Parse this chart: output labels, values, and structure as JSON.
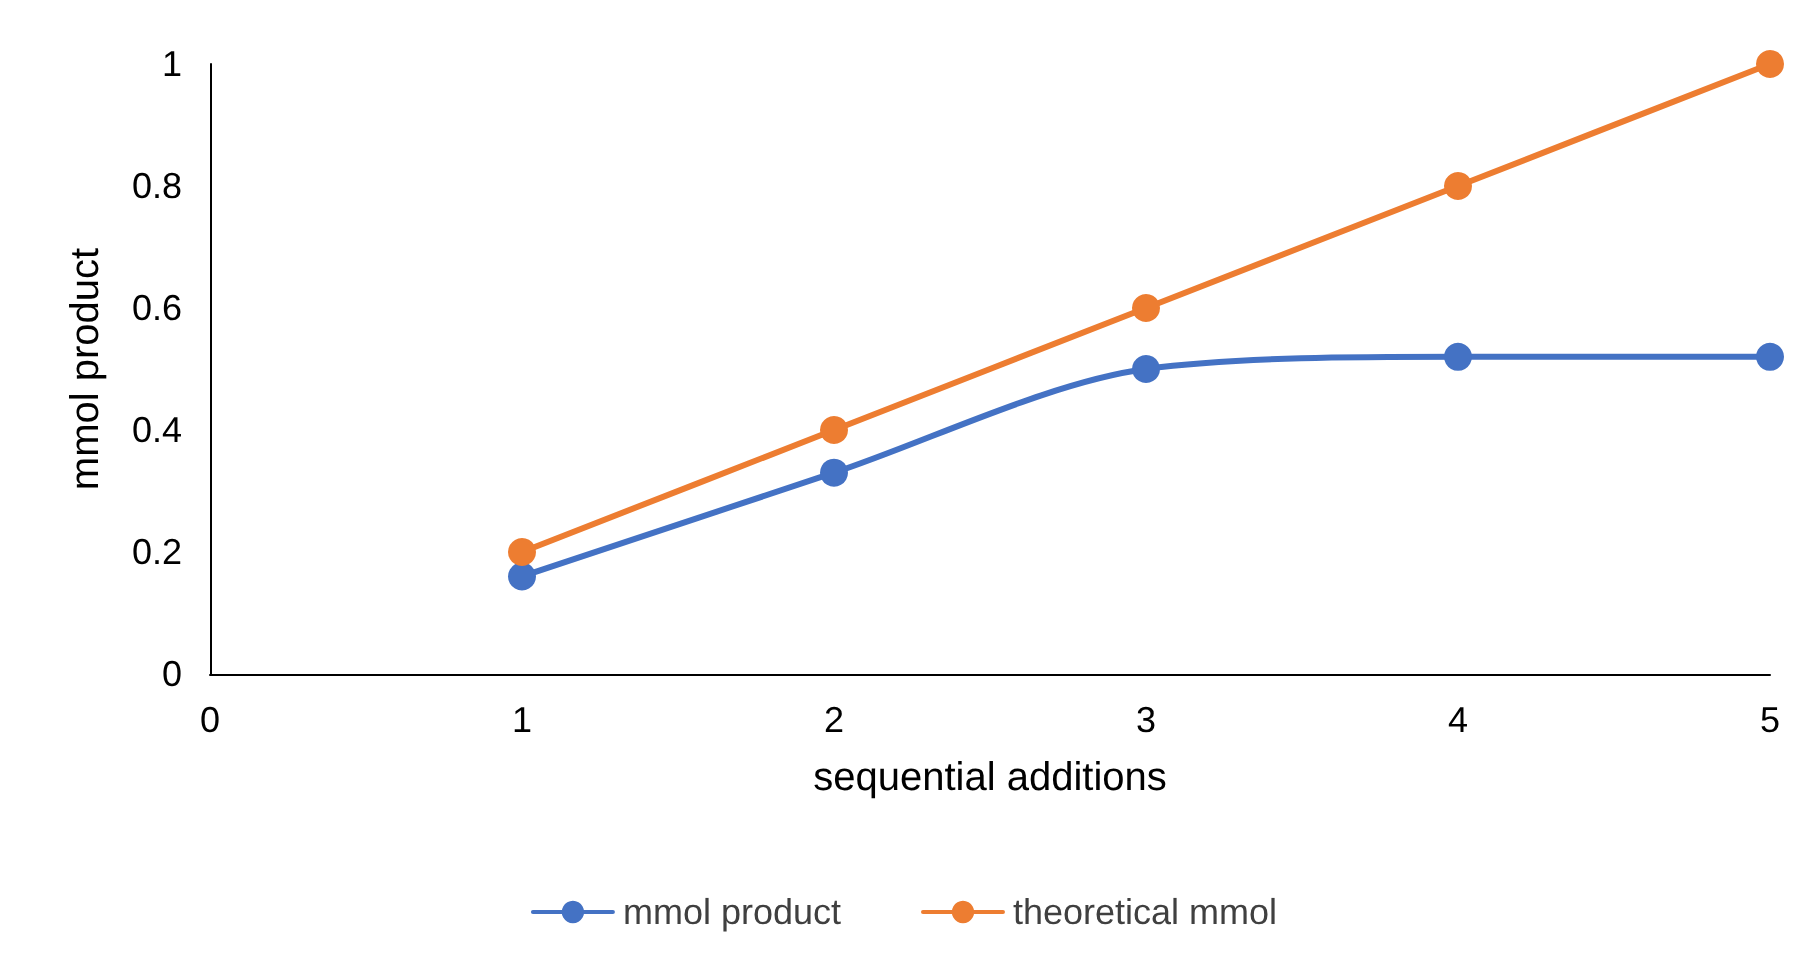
{
  "chart_data": {
    "type": "line",
    "xlabel": "sequential additions",
    "ylabel": "mmol product",
    "x": [
      1,
      2,
      3,
      4,
      5
    ],
    "series": [
      {
        "name": "mmol product",
        "color": "#4472c4",
        "values": [
          0.16,
          0.33,
          0.5,
          0.52,
          0.52
        ]
      },
      {
        "name": "theoretical mmol",
        "color": "#ed7d31",
        "values": [
          0.2,
          0.4,
          0.6,
          0.8,
          1
        ]
      }
    ],
    "xlim": [
      0,
      5
    ],
    "xticks": [
      0,
      1,
      2,
      3,
      4,
      5
    ],
    "ylim": [
      0,
      1
    ],
    "yticks": [
      0,
      0.2,
      0.4,
      0.6,
      0.8,
      1
    ],
    "grid": false,
    "legend": "bottom",
    "marker": "circle",
    "line_style": "solid"
  }
}
